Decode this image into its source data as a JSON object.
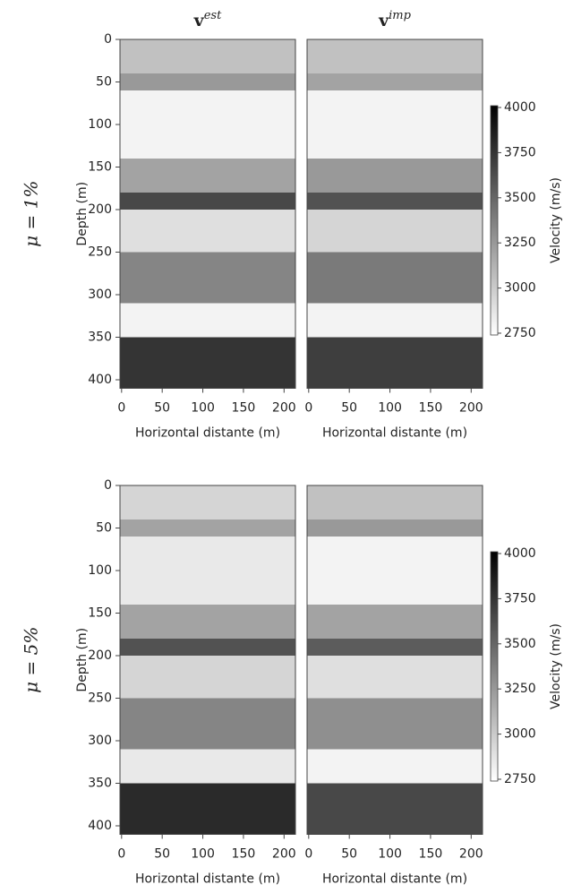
{
  "chart_data": [
    {
      "type": "heatmap",
      "title": "v",
      "title_sup": "est",
      "row_label": "μ = 1%",
      "ylabel": "Depth (m)",
      "xlabel": "Horizontal distante (m)",
      "xlim": [
        -2,
        214
      ],
      "xticks": [
        0,
        50,
        100,
        150,
        200
      ],
      "ylim": [
        0,
        410
      ],
      "yticks": [
        0,
        50,
        100,
        150,
        200,
        250,
        300,
        350,
        400
      ],
      "depths": [
        0,
        40,
        60,
        140,
        180,
        200,
        250,
        310,
        350,
        410
      ],
      "values": [
        3050,
        3250,
        2800,
        3200,
        3650,
        2900,
        3350,
        2800,
        3750
      ]
    },
    {
      "type": "heatmap",
      "title": "v",
      "title_sup": "imp",
      "xlabel": "Horizontal distante (m)",
      "xlim": [
        -2,
        214
      ],
      "xticks": [
        0,
        50,
        100,
        150,
        200
      ],
      "ylim": [
        0,
        410
      ],
      "depths": [
        0,
        40,
        60,
        140,
        180,
        200,
        250,
        310,
        350,
        410
      ],
      "values": [
        3050,
        3200,
        2800,
        3250,
        3600,
        2950,
        3400,
        2800,
        3700
      ],
      "colorbar": {
        "label": "Velocity (m/s)",
        "lim": [
          2740,
          4010
        ],
        "ticks": [
          2750,
          3000,
          3250,
          3500,
          3750,
          4000
        ]
      }
    },
    {
      "type": "heatmap",
      "row_label": "μ = 5%",
      "ylabel": "Depth (m)",
      "xlabel": "Horizontal distante (m)",
      "xlim": [
        -2,
        214
      ],
      "xticks": [
        0,
        50,
        100,
        150,
        200
      ],
      "ylim": [
        0,
        410
      ],
      "yticks": [
        0,
        50,
        100,
        150,
        200,
        250,
        300,
        350,
        400
      ],
      "depths": [
        0,
        40,
        60,
        140,
        180,
        200,
        250,
        310,
        350,
        410
      ],
      "values": [
        2950,
        3200,
        2850,
        3200,
        3600,
        2950,
        3350,
        2850,
        3800
      ]
    },
    {
      "type": "heatmap",
      "xlabel": "Horizontal distante (m)",
      "xlim": [
        -2,
        214
      ],
      "xticks": [
        0,
        50,
        100,
        150,
        200
      ],
      "ylim": [
        0,
        410
      ],
      "depths": [
        0,
        40,
        60,
        140,
        180,
        200,
        250,
        310,
        350,
        410
      ],
      "values": [
        3050,
        3250,
        2800,
        3200,
        3550,
        2900,
        3300,
        2800,
        3650
      ],
      "colorbar": {
        "label": "Velocity (m/s)",
        "lim": [
          2740,
          4010
        ],
        "ticks": [
          2750,
          3000,
          3250,
          3500,
          3750,
          4000
        ]
      }
    }
  ]
}
